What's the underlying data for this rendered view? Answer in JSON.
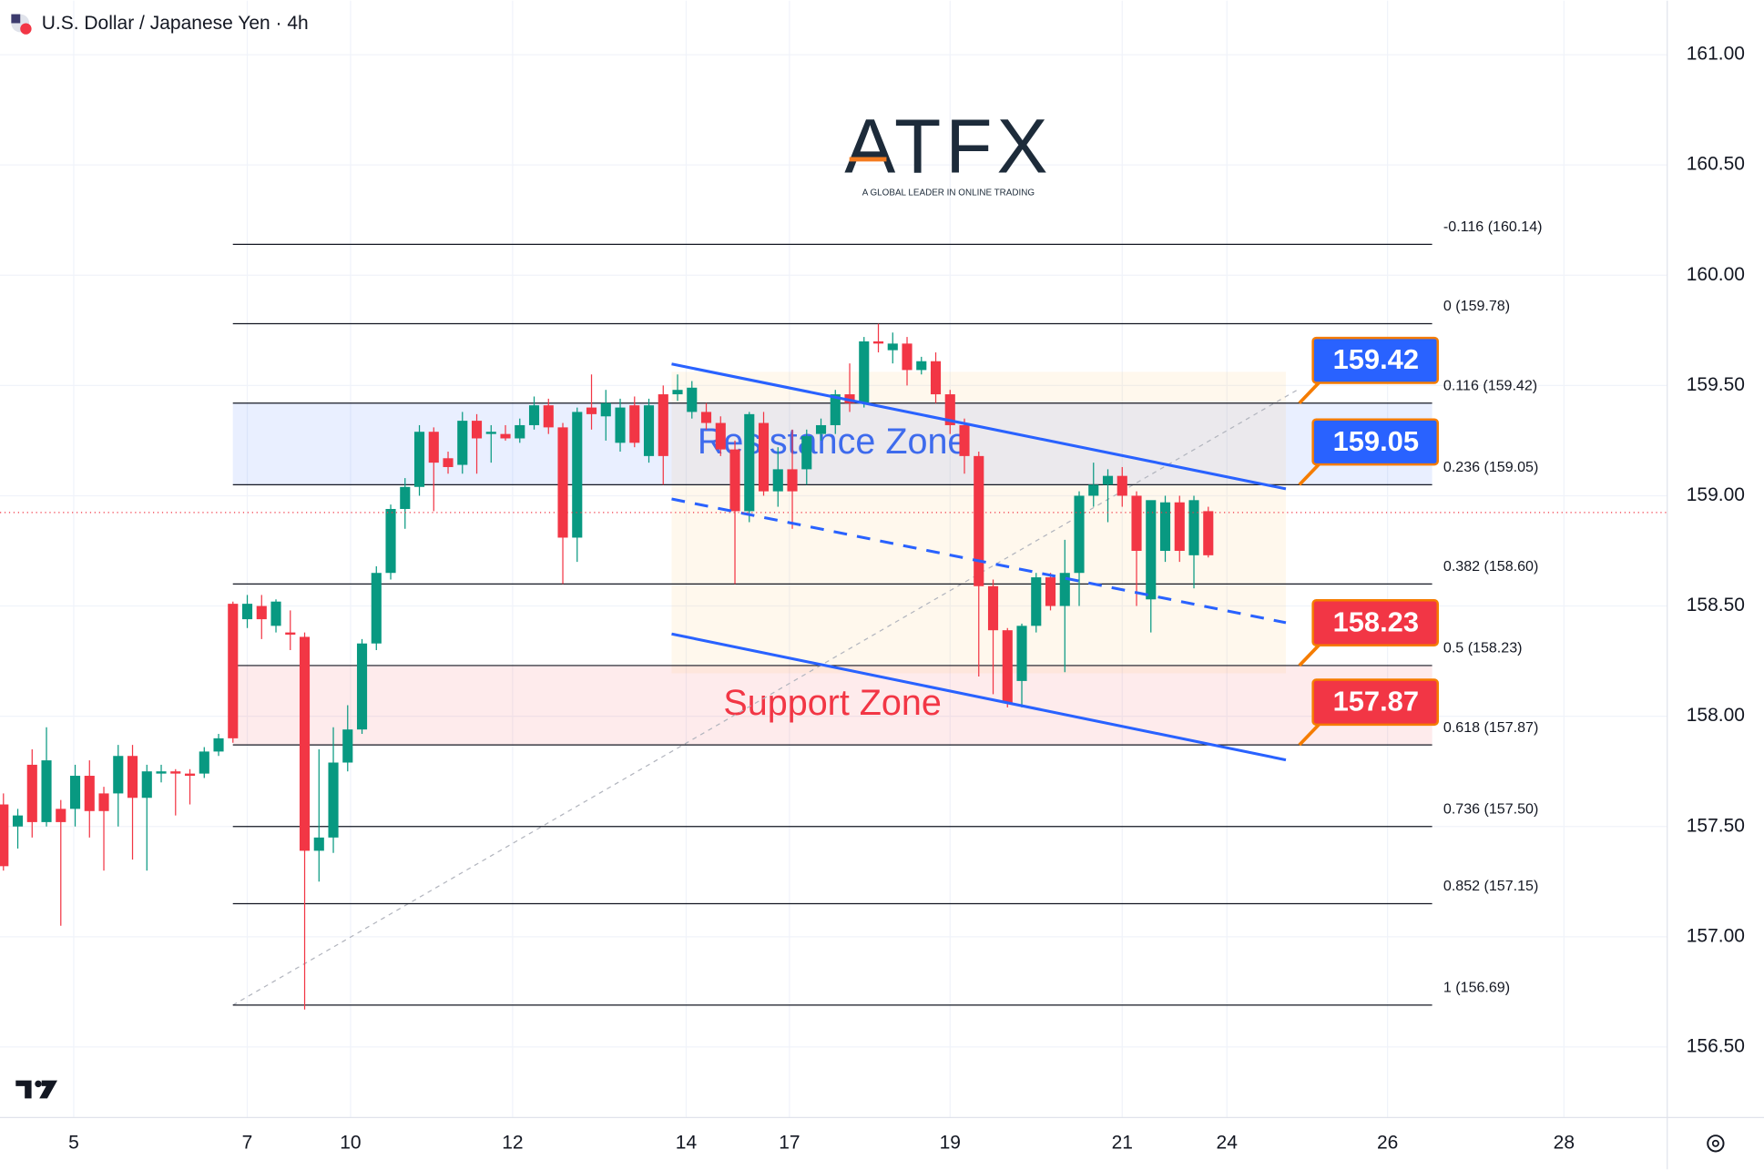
{
  "chart_data": {
    "type": "candlestick",
    "title": "U.S. Dollar / Japanese Yen · 4h",
    "logo": {
      "name": "ATFX",
      "tagline": "A GLOBAL LEADER IN ONLINE TRADING"
    },
    "up_color": "#089981",
    "down_color": "#f23645",
    "grid": true,
    "xlim": [
      -0.24,
      116
    ],
    "ylim": [
      156.18,
      161.245
    ],
    "xticks": [
      {
        "value": 4.9,
        "label": "5"
      },
      {
        "value": 17,
        "label": "7"
      },
      {
        "value": 24.2,
        "label": "10"
      },
      {
        "value": 35.5,
        "label": "12"
      },
      {
        "value": 47.6,
        "label": "14"
      },
      {
        "value": 54.8,
        "label": "17"
      },
      {
        "value": 66,
        "label": "19"
      },
      {
        "value": 78,
        "label": "21"
      },
      {
        "value": 85.3,
        "label": "24"
      },
      {
        "value": 96.5,
        "label": "26"
      },
      {
        "value": 108.8,
        "label": "28"
      }
    ],
    "yticks": [
      {
        "value": 156.5,
        "label": "156.50"
      },
      {
        "value": 157,
        "label": "157.00"
      },
      {
        "value": 157.5,
        "label": "157.50"
      },
      {
        "value": 158,
        "label": "158.00"
      },
      {
        "value": 158.5,
        "label": "158.50"
      },
      {
        "value": 159,
        "label": "159.00"
      },
      {
        "value": 159.5,
        "label": "159.50"
      },
      {
        "value": 160,
        "label": "160.00"
      },
      {
        "value": 160.5,
        "label": "160.50"
      },
      {
        "value": 161,
        "label": "161.00"
      }
    ],
    "candles": {
      "open": [
        157.6,
        157.5,
        157.78,
        157.52,
        157.58,
        157.58,
        157.73,
        157.65,
        157.65,
        157.82,
        157.63,
        157.74,
        157.75,
        157.74,
        157.74,
        157.84,
        158.51,
        158.44,
        158.5,
        158.41,
        158.38,
        158.36,
        157.39,
        157.45,
        157.79,
        157.94,
        158.33,
        158.65,
        158.94,
        159.04,
        159.29,
        159.17,
        159.14,
        159.34,
        159.28,
        159.28,
        159.26,
        159.32,
        159.41,
        159.31,
        158.81,
        159.4,
        159.36,
        159.24,
        159.41,
        159.18,
        159.46,
        159.46,
        159.38,
        159.38,
        159.33,
        159.21,
        158.93,
        159.33,
        159.02,
        159.12,
        159.12,
        159.28,
        159.32,
        159.46,
        159.42,
        159.7,
        159.66,
        159.69,
        159.57,
        159.61,
        159.46,
        159.32,
        159.18,
        158.59,
        158.39,
        158.16,
        158.41,
        158.63,
        158.5,
        158.65,
        159.0,
        159.05,
        159.09,
        159.0,
        158.53,
        158.75,
        158.97,
        158.73,
        158.93
      ],
      "high": [
        157.65,
        157.58,
        157.85,
        157.95,
        157.62,
        157.78,
        157.8,
        157.68,
        157.87,
        157.87,
        157.78,
        157.78,
        157.76,
        157.76,
        157.86,
        157.92,
        158.52,
        158.55,
        158.55,
        158.53,
        158.48,
        158.38,
        157.85,
        157.95,
        158.05,
        158.35,
        158.68,
        158.96,
        159.08,
        159.32,
        159.31,
        159.2,
        159.38,
        159.37,
        159.32,
        159.32,
        159.35,
        159.45,
        159.44,
        159.33,
        159.4,
        159.55,
        159.48,
        159.44,
        159.45,
        159.44,
        159.5,
        159.55,
        159.52,
        159.42,
        159.36,
        159.25,
        159.38,
        159.38,
        159.22,
        159.3,
        159.3,
        159.35,
        159.48,
        159.6,
        159.72,
        159.78,
        159.74,
        159.72,
        159.63,
        159.65,
        159.48,
        159.35,
        159.2,
        158.62,
        158.4,
        158.42,
        158.65,
        158.65,
        158.8,
        159.02,
        159.15,
        159.12,
        159.13,
        159.02,
        158.78,
        159.0,
        159.0,
        159.0,
        158.95
      ],
      "low": [
        157.3,
        157.4,
        157.45,
        157.5,
        157.05,
        157.5,
        157.45,
        157.3,
        157.5,
        157.35,
        157.3,
        157.7,
        157.55,
        157.6,
        157.72,
        157.82,
        157.88,
        158.4,
        158.35,
        158.38,
        158.3,
        156.67,
        157.25,
        157.38,
        157.75,
        157.92,
        158.3,
        158.62,
        158.85,
        159.0,
        158.93,
        159.1,
        159.1,
        159.1,
        159.15,
        159.25,
        159.24,
        159.3,
        159.28,
        158.6,
        158.7,
        159.3,
        159.25,
        159.2,
        159.22,
        159.15,
        159.05,
        159.43,
        159.35,
        159.3,
        159.18,
        158.6,
        158.88,
        159.0,
        158.95,
        158.85,
        159.05,
        159.25,
        159.28,
        159.38,
        159.4,
        159.65,
        159.6,
        159.5,
        159.55,
        159.42,
        159.28,
        159.1,
        158.18,
        158.1,
        158.04,
        158.04,
        158.38,
        158.48,
        158.2,
        158.5,
        158.95,
        158.88,
        158.95,
        158.5,
        158.38,
        158.7,
        158.7,
        158.58,
        158.72
      ],
      "close": [
        157.32,
        157.55,
        157.52,
        157.8,
        157.52,
        157.73,
        157.57,
        157.57,
        157.82,
        157.63,
        157.75,
        157.75,
        157.74,
        157.73,
        157.84,
        157.9,
        157.9,
        158.51,
        158.44,
        158.52,
        158.37,
        157.39,
        157.45,
        157.79,
        157.94,
        158.33,
        158.65,
        158.94,
        159.04,
        159.29,
        159.15,
        159.13,
        159.34,
        159.26,
        159.29,
        159.26,
        159.32,
        159.41,
        159.31,
        158.81,
        159.38,
        159.37,
        159.42,
        159.4,
        159.24,
        159.41,
        159.18,
        159.48,
        159.49,
        159.33,
        159.21,
        158.93,
        159.37,
        159.02,
        159.12,
        159.02,
        159.27,
        159.32,
        159.46,
        159.42,
        159.7,
        159.69,
        159.69,
        159.57,
        159.61,
        159.46,
        159.32,
        159.18,
        158.59,
        158.39,
        158.06,
        158.41,
        158.63,
        158.5,
        158.65,
        159.0,
        159.05,
        159.09,
        159.0,
        158.75,
        158.98,
        158.97,
        158.75,
        158.98,
        158.73
      ]
    },
    "fib_levels": [
      {
        "value": 160.14,
        "label": "-0.116 (160.14)"
      },
      {
        "value": 159.78,
        "label": "0 (159.78)"
      },
      {
        "value": 159.42,
        "label": "0.116 (159.42)"
      },
      {
        "value": 159.05,
        "label": "0.236 (159.05)"
      },
      {
        "value": 158.6,
        "label": "0.382 (158.60)"
      },
      {
        "value": 158.23,
        "label": "0.5 (158.23)"
      },
      {
        "value": 157.87,
        "label": "0.618 (157.87)"
      },
      {
        "value": 157.5,
        "label": "0.736 (157.50)"
      },
      {
        "value": 157.15,
        "label": "0.852 (157.15)"
      },
      {
        "value": 156.69,
        "label": "1 (156.69)"
      }
    ],
    "price_tags": [
      {
        "value": 159.42,
        "label": "159.42",
        "color": "#2962ff"
      },
      {
        "value": 159.05,
        "label": "159.05",
        "color": "#2962ff"
      },
      {
        "value": 158.23,
        "label": "158.23",
        "color": "#f23645"
      },
      {
        "value": 157.87,
        "label": "157.87",
        "color": "#f23645"
      }
    ],
    "zones": [
      {
        "name": "Resistance Zone",
        "from": 159.05,
        "to": 159.42,
        "color": "#2962ff"
      },
      {
        "name": "Support Zone",
        "from": 157.87,
        "to": 158.23,
        "color": "#f23645"
      }
    ]
  }
}
